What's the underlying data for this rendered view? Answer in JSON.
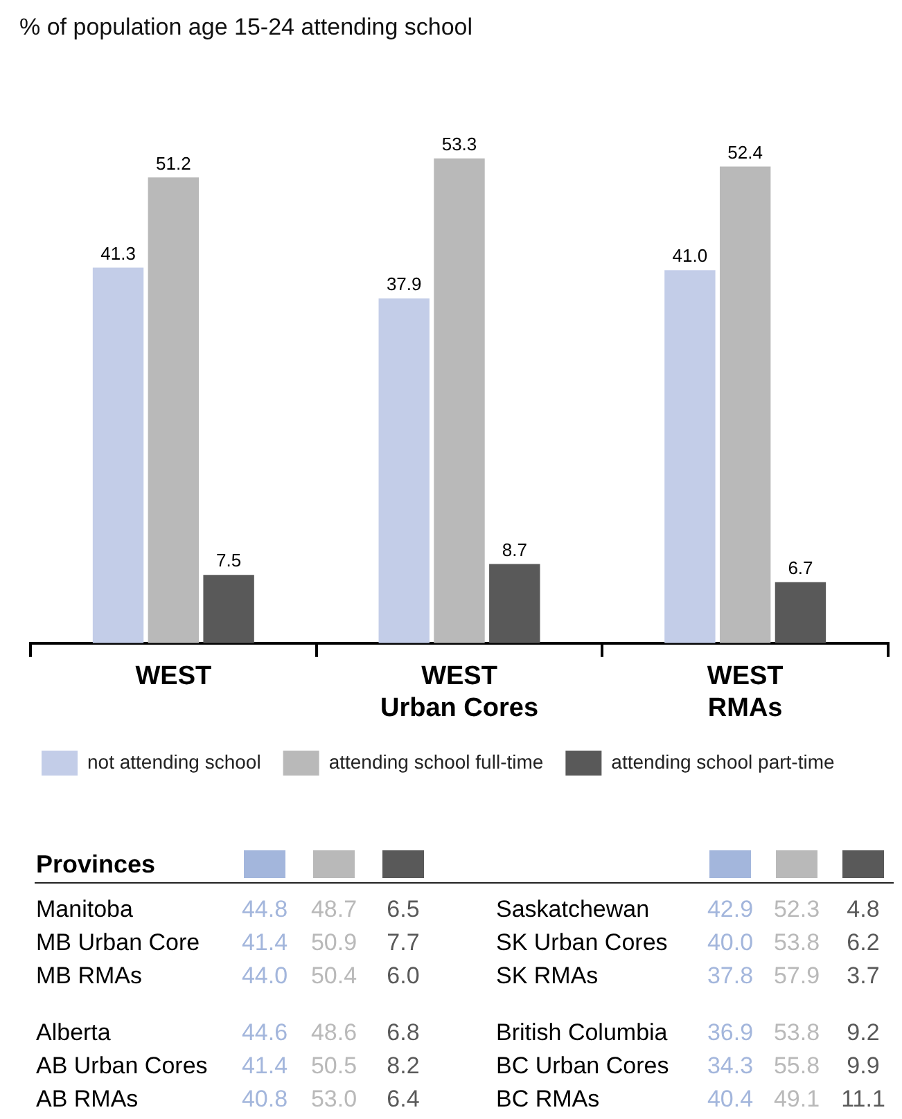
{
  "chart_data": [
    {
      "type": "bar",
      "title": "% of population age 15-24 attending school",
      "categories": [
        "WEST",
        "WEST\nUrban Cores",
        "WEST\nRMAs"
      ],
      "series": [
        {
          "name": "not attending school",
          "color": "#c3cde8",
          "values": [
            41.3,
            37.9,
            41.0
          ],
          "value_labels": [
            "41.3",
            "37.9",
            "41.0"
          ]
        },
        {
          "name": "attending school full-time",
          "color": "#b9b9b9",
          "values": [
            51.2,
            53.3,
            52.4
          ],
          "value_labels": [
            "51.2",
            "53.3",
            "52.4"
          ]
        },
        {
          "name": "attending school part-time",
          "color": "#595959",
          "values": [
            7.5,
            8.7,
            6.7
          ],
          "value_labels": [
            "7.5",
            "8.7",
            "6.7"
          ]
        }
      ],
      "legend": "bottom"
    },
    {
      "type": "other",
      "title": "Provinces",
      "categories": [
        "Manitoba",
        "MB Urban Core",
        "MB RMAs"
      ],
      "series": [
        {
          "color": "#a3b6dc",
          "values": [
            44.8,
            41.4,
            44.0
          ],
          "value_labels": [
            "44.8",
            "41.4",
            "44.0"
          ]
        },
        {
          "color": "#b9b9b9",
          "values": [
            48.7,
            50.9,
            50.4
          ],
          "value_labels": [
            "48.7",
            "50.9",
            "50.4"
          ]
        },
        {
          "color": "#595959",
          "values": [
            6.5,
            7.7,
            6.0
          ],
          "value_labels": [
            "6.5",
            "7.7",
            "6.0"
          ]
        }
      ]
    },
    {
      "type": "other",
      "categories": [
        "Alberta",
        "AB Urban Cores",
        "AB RMAs"
      ],
      "series": [
        {
          "color": "#a3b6dc",
          "values": [
            44.6,
            41.4,
            40.8
          ],
          "value_labels": [
            "44.6",
            "41.4",
            "40.8"
          ]
        },
        {
          "color": "#b9b9b9",
          "values": [
            48.6,
            50.5,
            53.0
          ],
          "value_labels": [
            "48.6",
            "50.5",
            "53.0"
          ]
        },
        {
          "color": "#595959",
          "values": [
            6.8,
            8.2,
            6.4
          ],
          "value_labels": [
            "6.8",
            "8.2",
            "6.4"
          ]
        }
      ]
    },
    {
      "type": "other",
      "categories": [
        "Saskatchewan",
        "SK Urban Cores",
        "SK RMAs"
      ],
      "series": [
        {
          "color": "#a3b6dc",
          "values": [
            42.9,
            40.0,
            37.8
          ],
          "value_labels": [
            "42.9",
            "40.0",
            "37.8"
          ]
        },
        {
          "color": "#b9b9b9",
          "values": [
            52.3,
            53.8,
            57.9
          ],
          "value_labels": [
            "52.3",
            "53.8",
            "57.9"
          ]
        },
        {
          "color": "#595959",
          "values": [
            4.8,
            6.2,
            3.7
          ],
          "value_labels": [
            "4.8",
            "6.2",
            "3.7"
          ]
        }
      ]
    },
    {
      "type": "other",
      "categories": [
        "British Columbia",
        "BC Urban Cores",
        "BC RMAs"
      ],
      "series": [
        {
          "color": "#a3b6dc",
          "values": [
            36.9,
            34.3,
            40.4
          ],
          "value_labels": [
            "36.9",
            "34.3",
            "40.4"
          ]
        },
        {
          "color": "#b9b9b9",
          "values": [
            53.8,
            55.8,
            49.1
          ],
          "value_labels": [
            "53.8",
            "55.8",
            "49.1"
          ]
        },
        {
          "color": "#595959",
          "values": [
            9.2,
            9.9,
            11.1
          ],
          "value_labels": [
            "9.2",
            "9.9",
            "11.1"
          ]
        }
      ]
    }
  ]
}
